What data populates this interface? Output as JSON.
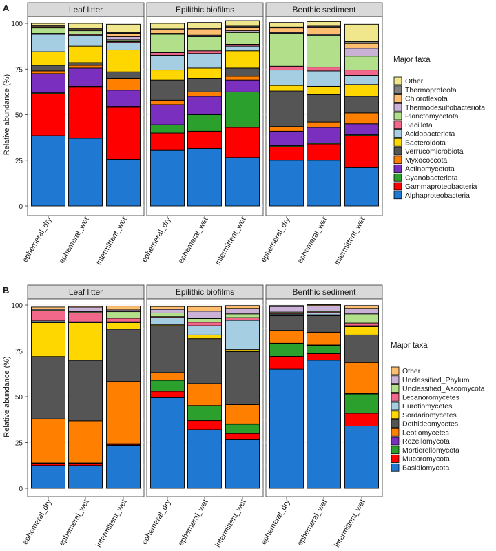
{
  "chart_data": [
    {
      "type": "bar",
      "stacked": true,
      "panel_label": "A",
      "ylabel": "Relative abundance (%)",
      "ylim": [
        0,
        100
      ],
      "yticks": [
        0,
        25,
        50,
        75,
        100
      ],
      "facets": [
        "Leaf litter",
        "Epilithic biofilms",
        "Benthic sediment"
      ],
      "categories": [
        "ephemeral_dry",
        "ephemeral_wet",
        "intermittent_wet"
      ],
      "legend_title": "Major taxa",
      "series": [
        {
          "name": "Alphaproteobacteria",
          "color": "#1f78d1",
          "values": [
            [
              38.5,
              37,
              25.5
            ],
            [
              30.5,
              31.5,
              26.5
            ],
            [
              25,
              25,
              21
            ]
          ]
        },
        {
          "name": "Gammaproteobacteria",
          "color": "#ff0000",
          "values": [
            [
              23,
              28,
              28.5
            ],
            [
              9.5,
              9.5,
              16.5
            ],
            [
              7.5,
              9,
              17.5
            ]
          ]
        },
        {
          "name": "Cyanobacteriota",
          "color": "#2ca02c",
          "values": [
            [
              0.5,
              0.5,
              0.5
            ],
            [
              4.5,
              9,
              19.5
            ],
            [
              0.5,
              0.5,
              0.5
            ]
          ]
        },
        {
          "name": "Actinomycetota",
          "color": "#7b2fbe",
          "values": [
            [
              10.5,
              10,
              9
            ],
            [
              11,
              10,
              6.5
            ],
            [
              8,
              8.5,
              6
            ]
          ]
        },
        {
          "name": "Myxococcota",
          "color": "#ff7f00",
          "values": [
            [
              1.5,
              1.5,
              6.5
            ],
            [
              2.5,
              2.5,
              2
            ],
            [
              2.5,
              3,
              6
            ]
          ]
        },
        {
          "name": "Verrucomicrobiota",
          "color": "#555555",
          "values": [
            [
              3,
              1.5,
              3.5
            ],
            [
              11,
              7.5,
              4.5
            ],
            [
              19.5,
              15,
              9
            ]
          ]
        },
        {
          "name": "Bacteroidota",
          "color": "#ffd700",
          "values": [
            [
              7.5,
              9,
              12
            ],
            [
              5.5,
              5.5,
              9.5
            ],
            [
              3,
              4.5,
              6.5
            ]
          ]
        },
        {
          "name": "Acidobacteriota",
          "color": "#a6cee3",
          "values": [
            [
              9.5,
              6,
              4
            ],
            [
              8,
              8,
              2.5
            ],
            [
              8.5,
              8.5,
              5
            ]
          ]
        },
        {
          "name": "Bacillota",
          "color": "#f1688b",
          "values": [
            [
              0.5,
              0.5,
              0.5
            ],
            [
              1.5,
              1.5,
              1
            ],
            [
              2,
              2,
              3
            ]
          ]
        },
        {
          "name": "Planctomycetota",
          "color": "#b2df8a",
          "values": [
            [
              3,
              2,
              1
            ],
            [
              10,
              8,
              6.5
            ],
            [
              18,
              17.5,
              7.5
            ]
          ]
        },
        {
          "name": "Thermodesulfobacteriota",
          "color": "#cab2d6",
          "values": [
            [
              0.5,
              0.5,
              2
            ],
            [
              0.5,
              0.5,
              1
            ],
            [
              0.5,
              0.5,
              4.5
            ]
          ]
        },
        {
          "name": "Chloroflexota",
          "color": "#fdbf6f",
          "values": [
            [
              0.5,
              0.5,
              1.5
            ],
            [
              2,
              3.5,
              2
            ],
            [
              2.5,
              4,
              2.5
            ]
          ]
        },
        {
          "name": "Thermoproteota",
          "color": "#7f7f7f",
          "values": [
            [
              0.5,
              0.5,
              0.5
            ],
            [
              0.5,
              0.5,
              0.5
            ],
            [
              0.5,
              0.5,
              1
            ]
          ]
        },
        {
          "name": "Other",
          "color": "#f0e68c",
          "values": [
            [
              1,
              2.5,
              4.5
            ],
            [
              3,
              3,
              3
            ],
            [
              2.5,
              2.5,
              9.5
            ]
          ]
        }
      ]
    },
    {
      "type": "bar",
      "stacked": true,
      "panel_label": "B",
      "ylabel": "Relative abundance (%)",
      "ylim": [
        0,
        100
      ],
      "yticks": [
        0,
        25,
        50,
        75,
        100
      ],
      "facets": [
        "Leaf litter",
        "Epilithic biofilms",
        "Benthic sediment"
      ],
      "categories": [
        "ephemeral_dry",
        "ephemeral_wet",
        "intermittent_wet"
      ],
      "legend_title": "Major taxa",
      "series": [
        {
          "name": "Basidiomycota",
          "color": "#1f78d1",
          "values": [
            [
              12.5,
              12.5,
              23.5
            ],
            [
              49.5,
              32,
              26.5
            ],
            [
              65,
              70,
              34
            ]
          ]
        },
        {
          "name": "Mucoromycota",
          "color": "#ff0000",
          "values": [
            [
              1,
              1,
              0.5
            ],
            [
              3.5,
              5,
              3.5
            ],
            [
              7,
              3.5,
              7
            ]
          ]
        },
        {
          "name": "Mortierellomycota",
          "color": "#2ca02c",
          "values": [
            [
              0.2,
              0.2,
              0.2
            ],
            [
              6,
              8,
              5
            ],
            [
              7,
              4.5,
              10.5
            ]
          ]
        },
        {
          "name": "Rozellomycota",
          "color": "#7b2fbe",
          "values": [
            [
              0.2,
              0.2,
              0.2
            ],
            [
              0.2,
              0.2,
              0.2
            ],
            [
              0.2,
              0.2,
              0.2
            ]
          ]
        },
        {
          "name": "Leotiomycetes",
          "color": "#ff7f00",
          "values": [
            [
              24,
              23,
              34
            ],
            [
              4,
              12,
              10.5
            ],
            [
              7,
              7,
              17
            ]
          ]
        },
        {
          "name": "Dothideomycetes",
          "color": "#555555",
          "values": [
            [
              34,
              33,
              28.5
            ],
            [
              25.5,
              24.5,
              29
            ],
            [
              8,
              9,
              15
            ]
          ]
        },
        {
          "name": "Sordariomycetes",
          "color": "#ffd700",
          "values": [
            [
              18.5,
              20.5,
              3.5
            ],
            [
              0.5,
              2,
              1
            ],
            [
              0.5,
              0.5,
              4.5
            ]
          ]
        },
        {
          "name": "Eurotiomycetes",
          "color": "#a6cee3",
          "values": [
            [
              1,
              0.5,
              0.5
            ],
            [
              4,
              5,
              16
            ],
            [
              0.5,
              1,
              0.5
            ]
          ]
        },
        {
          "name": "Lecanoromycetes",
          "color": "#f1688b",
          "values": [
            [
              5.5,
              5,
              2
            ],
            [
              0.5,
              2,
              1.5
            ],
            [
              0.5,
              0.5,
              1.5
            ]
          ]
        },
        {
          "name": "Unclassified_Ascomycota",
          "color": "#b2df8a",
          "values": [
            [
              0.5,
              0.5,
              3.5
            ],
            [
              2,
              2,
              2
            ],
            [
              0.5,
              0.5,
              5
            ]
          ]
        },
        {
          "name": "Unclassified_Phylum",
          "color": "#cab2d6",
          "values": [
            [
              0.5,
              2.5,
              1
            ],
            [
              2,
              4,
              3
            ],
            [
              3,
              3,
              3
            ]
          ]
        },
        {
          "name": "Other",
          "color": "#fdbf6f",
          "values": [
            [
              1,
              0.5,
              2
            ],
            [
              1.5,
              2.5,
              1.5
            ],
            [
              0.5,
              0.5,
              1.5
            ]
          ]
        }
      ]
    }
  ]
}
